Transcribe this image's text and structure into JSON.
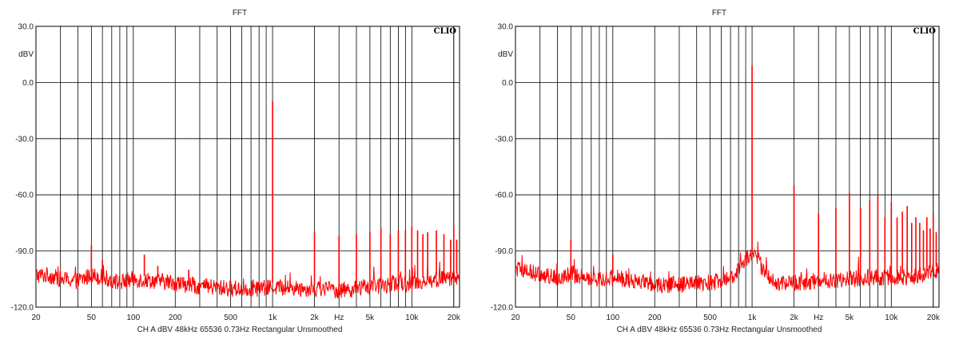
{
  "chart_data": [
    {
      "type": "line",
      "title": "FFT",
      "brand": "CLIO",
      "ylabel": "dBV",
      "xscale": "log",
      "xlim": [
        20,
        22000
      ],
      "ylim": [
        -120,
        30
      ],
      "grid": true,
      "yticks": [
        30,
        0,
        -30,
        -60,
        -90,
        -120
      ],
      "ytick_labels": [
        "30.0",
        "0.0",
        "-30.0",
        "-60.0",
        "-90.0",
        "-120.0"
      ],
      "xticks": [
        20,
        50,
        100,
        200,
        500,
        1000,
        2000,
        3000,
        5000,
        10000,
        20000
      ],
      "xtick_labels": [
        "20",
        "50",
        "100",
        "200",
        "500",
        "1k",
        "2k",
        "Hz",
        "5k",
        "10k",
        "20k"
      ],
      "footer": "CH A   dBV   48kHz   65536   0.73Hz   Rectangular   Unsmoothed",
      "line_color": "#ff0000",
      "series": [
        {
          "baseline": [
            [
              20,
              -103
            ],
            [
              25,
              -103
            ],
            [
              30,
              -105
            ],
            [
              40,
              -106
            ],
            [
              50,
              -103
            ],
            [
              60,
              -104
            ],
            [
              80,
              -107
            ],
            [
              100,
              -105
            ],
            [
              150,
              -106
            ],
            [
              200,
              -107
            ],
            [
              300,
              -109
            ],
            [
              500,
              -110
            ],
            [
              700,
              -110
            ],
            [
              900,
              -110
            ],
            [
              1000,
              -109
            ],
            [
              1500,
              -110
            ],
            [
              2000,
              -110
            ],
            [
              3000,
              -111
            ],
            [
              4000,
              -110
            ],
            [
              5000,
              -109
            ],
            [
              7000,
              -108
            ],
            [
              10000,
              -107
            ],
            [
              13000,
              -106
            ],
            [
              16000,
              -105
            ],
            [
              20000,
              -104
            ],
            [
              22000,
              -104
            ]
          ],
          "peaks": [
            [
              50,
              -87
            ],
            [
              60,
              -95
            ],
            [
              120,
              -92
            ],
            [
              150,
              -98
            ],
            [
              250,
              -100
            ],
            [
              1000,
              -10
            ],
            [
              2000,
              -80
            ],
            [
              3000,
              -82
            ],
            [
              4000,
              -81
            ],
            [
              5000,
              -80
            ],
            [
              6000,
              -78
            ],
            [
              7000,
              -81
            ],
            [
              8000,
              -79
            ],
            [
              9000,
              -79
            ],
            [
              10000,
              -77
            ],
            [
              11000,
              -79
            ],
            [
              12000,
              -81
            ],
            [
              13000,
              -80
            ],
            [
              15000,
              -79
            ],
            [
              17000,
              -81
            ],
            [
              19000,
              -84
            ],
            [
              20000,
              -77
            ],
            [
              21000,
              -84
            ]
          ]
        }
      ]
    },
    {
      "type": "line",
      "title": "FFT",
      "brand": "CLIO",
      "ylabel": "dBV",
      "xscale": "log",
      "xlim": [
        20,
        22000
      ],
      "ylim": [
        -120,
        30
      ],
      "grid": true,
      "yticks": [
        30,
        0,
        -30,
        -60,
        -90,
        -120
      ],
      "ytick_labels": [
        "30.0",
        "0.0",
        "-30.0",
        "-60.0",
        "-90.0",
        "-120.0"
      ],
      "xticks": [
        20,
        50,
        100,
        200,
        500,
        1000,
        2000,
        3000,
        5000,
        10000,
        20000
      ],
      "xtick_labels": [
        "20",
        "50",
        "100",
        "200",
        "500",
        "1k",
        "2k",
        "Hz",
        "5k",
        "10k",
        "20k"
      ],
      "footer": "CH A   dBV   48kHz   65536   0.73Hz   Rectangular   Unsmoothed",
      "line_color": "#ff0000",
      "series": [
        {
          "baseline": [
            [
              20,
              -100
            ],
            [
              25,
              -101
            ],
            [
              30,
              -103
            ],
            [
              40,
              -104
            ],
            [
              50,
              -102
            ],
            [
              60,
              -104
            ],
            [
              80,
              -105
            ],
            [
              100,
              -104
            ],
            [
              150,
              -106
            ],
            [
              200,
              -108
            ],
            [
              300,
              -108
            ],
            [
              500,
              -107
            ],
            [
              700,
              -105
            ],
            [
              800,
              -100
            ],
            [
              900,
              -94
            ],
            [
              1000,
              -92
            ],
            [
              1100,
              -94
            ],
            [
              1200,
              -101
            ],
            [
              1500,
              -107
            ],
            [
              2000,
              -107
            ],
            [
              3000,
              -106
            ],
            [
              5000,
              -105
            ],
            [
              7000,
              -104
            ],
            [
              10000,
              -104
            ],
            [
              13000,
              -104
            ],
            [
              16000,
              -103
            ],
            [
              20000,
              -101
            ],
            [
              22000,
              -100
            ]
          ],
          "peaks": [
            [
              50,
              -84
            ],
            [
              100,
              -92
            ],
            [
              1000,
              9
            ],
            [
              2000,
              -55
            ],
            [
              3000,
              -70
            ],
            [
              4000,
              -67
            ],
            [
              5000,
              -59
            ],
            [
              6000,
              -67
            ],
            [
              7000,
              -63
            ],
            [
              8000,
              -60
            ],
            [
              9000,
              -72
            ],
            [
              10000,
              -64
            ],
            [
              11000,
              -72
            ],
            [
              12000,
              -69
            ],
            [
              13000,
              -66
            ],
            [
              14000,
              -75
            ],
            [
              15000,
              -72
            ],
            [
              16000,
              -75
            ],
            [
              17000,
              -79
            ],
            [
              18000,
              -72
            ],
            [
              19000,
              -78
            ],
            [
              20000,
              -70
            ],
            [
              21000,
              -80
            ]
          ]
        }
      ]
    }
  ]
}
